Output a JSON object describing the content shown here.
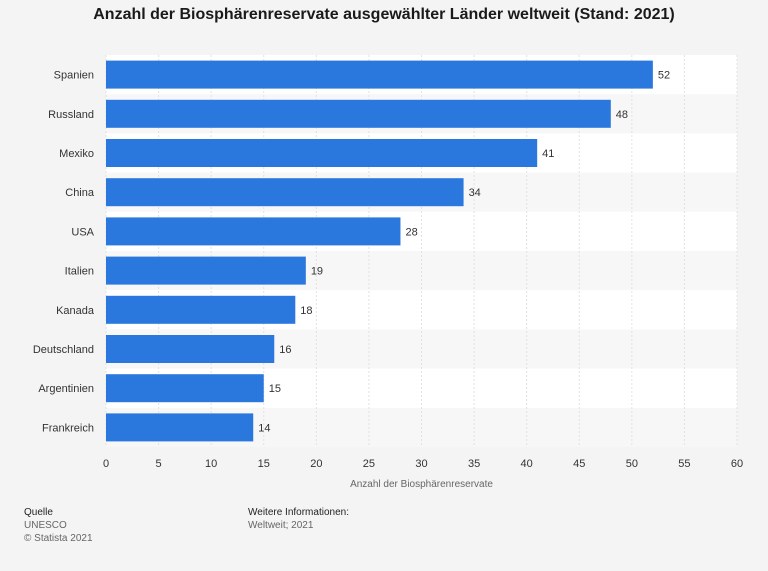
{
  "header": {
    "title": "Anzahl der Biosphärenreservate ausgewählter Länder weltweit (Stand: 2021)"
  },
  "chart_data": {
    "type": "bar",
    "orientation": "horizontal",
    "title": "Anzahl der Biosphärenreservate ausgewählter Länder weltweit (Stand: 2021)",
    "categories": [
      "Spanien",
      "Russland",
      "Mexiko",
      "China",
      "USA",
      "Italien",
      "Kanada",
      "Deutschland",
      "Argentinien",
      "Frankreich"
    ],
    "values": [
      52,
      48,
      41,
      34,
      28,
      19,
      18,
      16,
      15,
      14
    ],
    "xlabel": "Anzahl der Biosphärenreservate",
    "ylabel": "",
    "xlim": [
      0,
      60
    ],
    "xticks": [
      0,
      5,
      10,
      15,
      20,
      25,
      30,
      35,
      40,
      45,
      50,
      55,
      60
    ],
    "grid": true,
    "bar_color": "#2a77dd"
  },
  "footer": {
    "source_heading": "Quelle",
    "source": "UNESCO",
    "copyright": "© Statista 2021",
    "info_heading": "Weitere Informationen:",
    "info": "Weltweit; 2021"
  }
}
